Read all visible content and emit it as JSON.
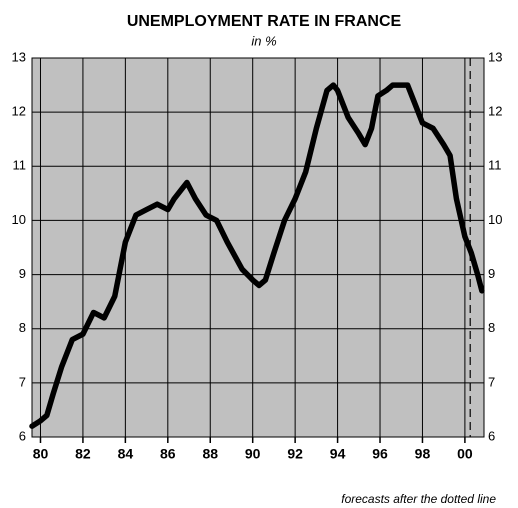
{
  "chart_data": {
    "type": "line",
    "title": "UNEMPLOYMENT RATE IN FRANCE",
    "subtitle": "in %",
    "note": "forecasts after the dotted line",
    "x": [
      1979.6,
      1980,
      1980.3,
      1980.6,
      1981,
      1981.5,
      1982,
      1982.5,
      1983,
      1983.5,
      1984,
      1984.5,
      1985,
      1985.5,
      1986,
      1986.3,
      1986.7,
      1986.9,
      1987.3,
      1987.8,
      1988.3,
      1988.8,
      1989.5,
      1990,
      1990.3,
      1990.6,
      1991,
      1991.5,
      1992,
      1992.5,
      1993,
      1993.5,
      1993.8,
      1994,
      1994.5,
      1995,
      1995.3,
      1995.6,
      1995.9,
      1996.3,
      1996.6,
      1997,
      1997.3,
      1997.6,
      1998,
      1998.5,
      1999,
      1999.3,
      1999.6,
      2000,
      2000.3,
      2000.6,
      2000.8
    ],
    "series": [
      {
        "name": "Unemployment rate",
        "color": "#000000",
        "values": [
          6.2,
          6.3,
          6.4,
          6.8,
          7.3,
          7.8,
          7.9,
          8.3,
          8.2,
          8.6,
          9.6,
          10.1,
          10.2,
          10.3,
          10.2,
          10.4,
          10.6,
          10.7,
          10.4,
          10.1,
          10.0,
          9.6,
          9.1,
          8.9,
          8.8,
          8.9,
          9.4,
          10.0,
          10.4,
          10.9,
          11.7,
          12.4,
          12.5,
          12.4,
          11.9,
          11.6,
          11.4,
          11.7,
          12.3,
          12.4,
          12.5,
          12.5,
          12.5,
          12.2,
          11.8,
          11.7,
          11.4,
          11.2,
          10.4,
          9.7,
          9.4,
          9.0,
          8.7
        ]
      }
    ],
    "forecast_start": 2000.25,
    "xlim": [
      1979.6,
      2000.9
    ],
    "xticks": [
      {
        "value": 1980,
        "label": "80"
      },
      {
        "value": 1982,
        "label": "82"
      },
      {
        "value": 1984,
        "label": "84"
      },
      {
        "value": 1986,
        "label": "86"
      },
      {
        "value": 1988,
        "label": "88"
      },
      {
        "value": 1990,
        "label": "90"
      },
      {
        "value": 1992,
        "label": "92"
      },
      {
        "value": 1994,
        "label": "94"
      },
      {
        "value": 1996,
        "label": "96"
      },
      {
        "value": 1998,
        "label": "98"
      },
      {
        "value": 2000,
        "label": "00"
      }
    ],
    "ylim": [
      6,
      13
    ],
    "yticks": [
      6,
      7,
      8,
      9,
      10,
      11,
      12,
      13
    ],
    "grid": true,
    "background": "#c0c0c0"
  }
}
